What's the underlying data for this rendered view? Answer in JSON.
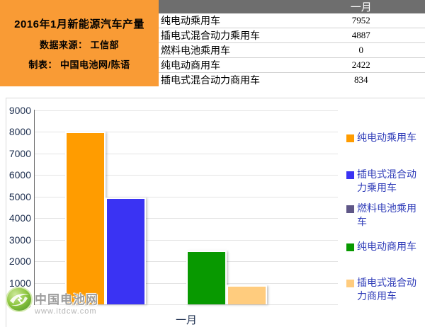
{
  "header": {
    "title": "2016年1月新能源汽车产量",
    "source": "数据来源： 工信部",
    "author": "制表： 中国电池网/陈语",
    "panel_color": "#F99B35"
  },
  "table": {
    "month_header": "一月",
    "header_bg": "#6E6E6E",
    "rows": [
      {
        "label": "纯电动乘用车",
        "value": "7952"
      },
      {
        "label": "插电式混合动力乘用车",
        "value": "4887"
      },
      {
        "label": "燃料电池乘用车",
        "value": "0"
      },
      {
        "label": "纯电动商用车",
        "value": "2422"
      },
      {
        "label": "插电式混合动力商用车",
        "value": "834"
      }
    ]
  },
  "chart_data": {
    "type": "bar",
    "title": "2016年1月新能源汽车产量",
    "x_categories": [
      "一月"
    ],
    "series": [
      {
        "name": "纯电动乘用车",
        "color": "#FF9C00",
        "values": [
          7952
        ]
      },
      {
        "name": "插电式混合动力乘用车",
        "color": "#3A33F3",
        "values": [
          4887
        ]
      },
      {
        "name": "燃料电池乘用车",
        "color": "#5F5787",
        "values": [
          0
        ]
      },
      {
        "name": "纯电动商用车",
        "color": "#089900",
        "values": [
          2422
        ]
      },
      {
        "name": "插电式混合动力商用车",
        "color": "#FFCC7E",
        "values": [
          834
        ]
      }
    ],
    "ylim": [
      0,
      9000
    ],
    "ytick_step": 1000,
    "grid": true,
    "legend_position": "right",
    "axis_text_color": "#1F3050",
    "legend_text_color": "#2E3BB8"
  },
  "watermark": {
    "name": "中国电池网",
    "url": "www.itdcw.com"
  }
}
